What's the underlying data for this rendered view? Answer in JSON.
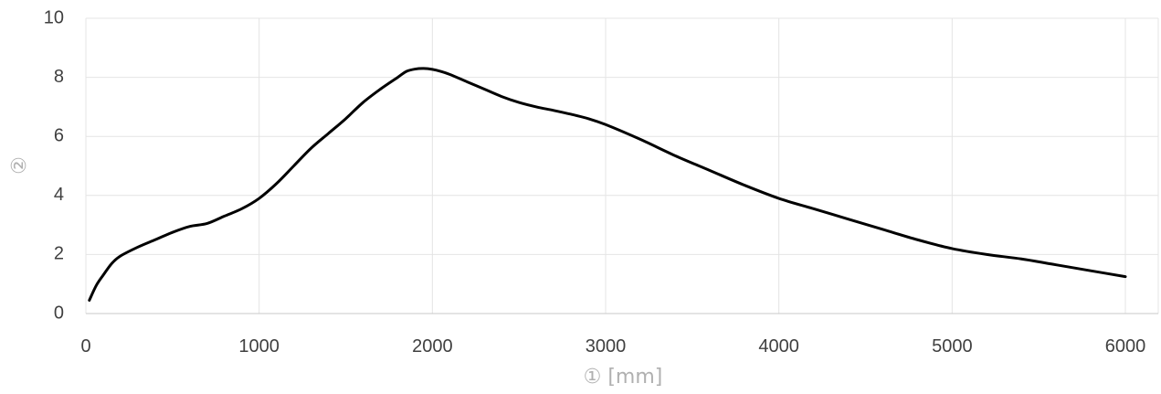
{
  "chart_data": {
    "type": "line",
    "xlabel": "① [mm]",
    "ylabel": "②",
    "xlim": [
      0,
      6000
    ],
    "ylim": [
      0,
      10
    ],
    "xticks": [
      0,
      1000,
      2000,
      3000,
      4000,
      5000,
      6000
    ],
    "yticks": [
      0,
      2,
      4,
      6,
      8,
      10
    ],
    "xtick_labels": [
      "0",
      "1000",
      "2000",
      "3000",
      "4000",
      "5000",
      "6000"
    ],
    "ytick_labels": [
      "0",
      "2",
      "4",
      "6",
      "8",
      "10"
    ],
    "grid": true,
    "line_color": "#000000",
    "series": [
      {
        "x": [
          20,
          60,
          100,
          150,
          200,
          300,
          400,
          500,
          600,
          700,
          800,
          900,
          1000,
          1100,
          1200,
          1300,
          1400,
          1500,
          1600,
          1700,
          1800,
          1850,
          1900,
          1950,
          2000,
          2050,
          2100,
          2200,
          2300,
          2400,
          2500,
          2600,
          2700,
          2800,
          2900,
          3000,
          3200,
          3400,
          3600,
          3800,
          4000,
          4200,
          4400,
          4600,
          4800,
          5000,
          5200,
          5400,
          5600,
          5800,
          6000
        ],
        "y": [
          0.45,
          0.95,
          1.3,
          1.7,
          1.95,
          2.25,
          2.5,
          2.75,
          2.95,
          3.05,
          3.3,
          3.55,
          3.9,
          4.4,
          5.0,
          5.6,
          6.1,
          6.6,
          7.15,
          7.6,
          8.0,
          8.2,
          8.28,
          8.3,
          8.27,
          8.2,
          8.1,
          7.85,
          7.6,
          7.35,
          7.15,
          7.0,
          6.88,
          6.75,
          6.6,
          6.4,
          5.9,
          5.35,
          4.85,
          4.35,
          3.9,
          3.55,
          3.2,
          2.85,
          2.5,
          2.2,
          2.0,
          1.85,
          1.65,
          1.45,
          1.25
        ]
      }
    ]
  }
}
